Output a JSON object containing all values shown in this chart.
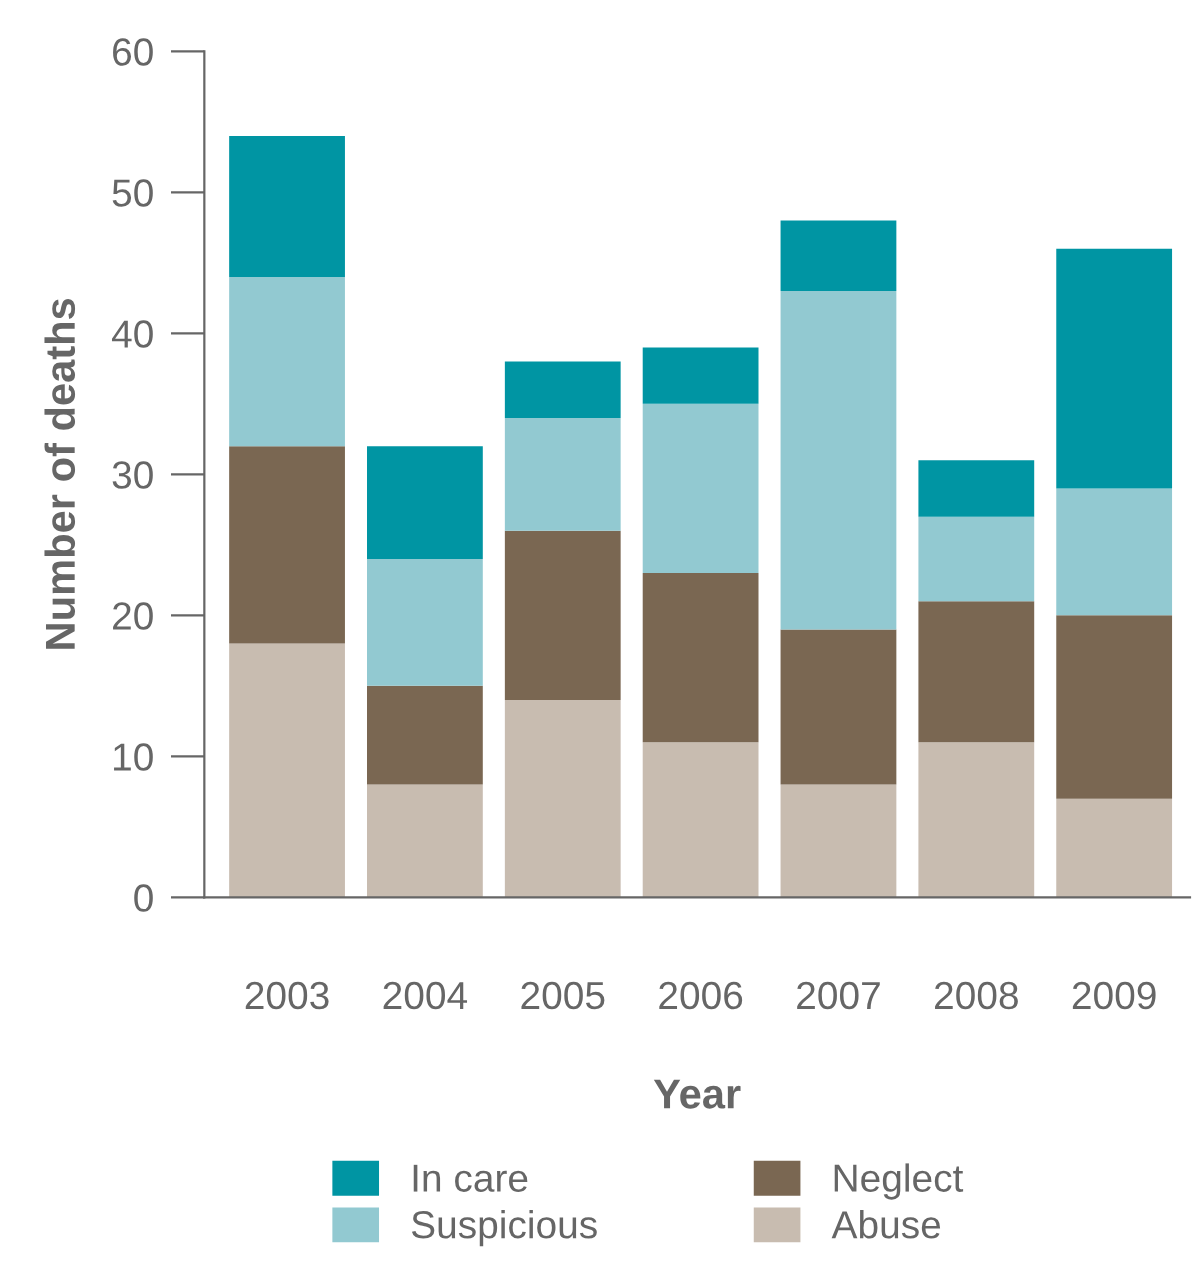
{
  "chart_data": {
    "type": "bar",
    "stacked": true,
    "xlabel": "Year",
    "ylabel": "Number of deaths",
    "categories": [
      "2003",
      "2004",
      "2005",
      "2006",
      "2007",
      "2008",
      "2009"
    ],
    "series": [
      {
        "name": "Abuse",
        "color": "#c8bcb0",
        "values": [
          18,
          8,
          14,
          11,
          8,
          11,
          7
        ]
      },
      {
        "name": "Neglect",
        "color": "#7a6752",
        "values": [
          14,
          7,
          12,
          12,
          11,
          10,
          13
        ]
      },
      {
        "name": "Suspicious",
        "color": "#92c9d1",
        "values": [
          12,
          9,
          8,
          12,
          24,
          6,
          9
        ]
      },
      {
        "name": "In care",
        "color": "#0095a3",
        "values": [
          10,
          8,
          4,
          4,
          5,
          4,
          17
        ]
      }
    ],
    "ylim": [
      0,
      60
    ],
    "yticks": [
      0,
      10,
      20,
      30,
      40,
      50,
      60
    ],
    "grid": false,
    "legend": "bottom"
  }
}
